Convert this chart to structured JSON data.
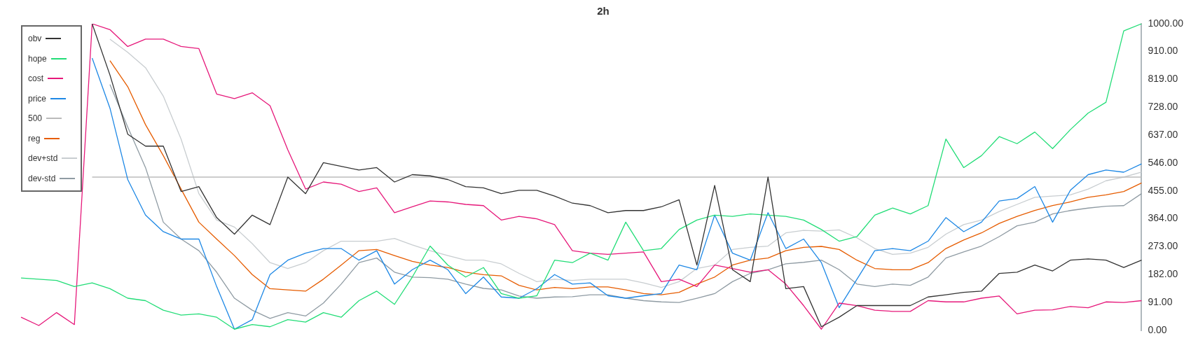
{
  "chart_data": {
    "type": "line",
    "title": "2h",
    "categories": [
      null,
      null,
      null,
      null,
      null,
      null,
      null,
      null,
      null,
      null,
      null,
      null,
      null,
      null,
      null,
      null,
      null,
      null,
      null,
      null,
      null,
      null,
      null,
      null,
      null,
      null,
      null,
      null,
      null,
      null,
      null,
      null,
      null,
      null,
      null,
      null,
      null,
      null,
      null,
      null,
      null,
      null,
      null,
      null,
      null,
      null,
      null,
      null,
      null,
      null,
      null,
      null,
      null,
      null,
      null,
      null,
      null,
      null,
      null,
      null,
      null,
      null,
      null,
      null
    ],
    "series": [
      {
        "name": "obv",
        "color": "#333333",
        "values": [
          null,
          null,
          null,
          null,
          1000,
          833,
          640,
          601,
          601,
          453,
          469,
          368,
          314,
          376,
          345,
          500,
          446,
          547,
          535,
          523,
          531,
          484,
          508,
          504,
          492,
          469,
          465,
          446,
          457,
          457,
          438,
          415,
          407,
          384,
          391,
          391,
          403,
          426,
          213,
          473,
          198,
          159,
          500,
          136,
          143,
          12,
          43,
          81,
          81,
          81,
          81,
          109,
          116,
          124,
          128,
          186,
          190,
          213,
          194,
          229,
          233,
          229,
          205,
          229
        ]
      },
      {
        "name": "hope",
        "color": "#22dd77",
        "values": [
          171,
          167,
          163,
          143,
          155,
          136,
          105,
          97,
          66,
          50,
          54,
          43,
          4,
          19,
          12,
          35,
          27,
          58,
          43,
          97,
          128,
          85,
          174,
          275,
          213,
          174,
          205,
          120,
          105,
          113,
          229,
          221,
          252,
          229,
          353,
          260,
          267,
          329,
          360,
          376,
          372,
          380,
          376,
          372,
          360,
          329,
          291,
          306,
          376,
          399,
          380,
          407,
          624,
          531,
          570,
          632,
          609,
          647,
          593,
          655,
          709,
          744,
          977,
          1000
        ]
      },
      {
        "name": "cost",
        "color": "#e6187a",
        "values": [
          43,
          16,
          58,
          19,
          1000,
          981,
          926,
          950,
          950,
          926,
          919,
          771,
          756,
          775,
          733,
          589,
          461,
          484,
          477,
          453,
          465,
          384,
          403,
          422,
          419,
          411,
          407,
          360,
          372,
          364,
          345,
          260,
          252,
          248,
          252,
          256,
          159,
          167,
          143,
          213,
          202,
          190,
          198,
          151,
          81,
          4,
          89,
          81,
          66,
          62,
          62,
          97,
          93,
          93,
          105,
          112,
          54,
          66,
          67,
          78,
          74,
          93,
          91,
          97
        ]
      },
      {
        "name": "price",
        "color": "#1e88e5",
        "values": [
          null,
          null,
          null,
          null,
          888,
          725,
          492,
          376,
          322,
          298,
          298,
          143,
          4,
          35,
          182,
          229,
          252,
          267,
          267,
          229,
          260,
          151,
          198,
          229,
          198,
          120,
          174,
          109,
          105,
          136,
          182,
          151,
          155,
          113,
          105,
          113,
          120,
          213,
          198,
          376,
          252,
          229,
          384,
          267,
          298,
          221,
          74,
          167,
          260,
          267,
          260,
          291,
          368,
          322,
          353,
          422,
          430,
          469,
          353,
          457,
          508,
          523,
          516,
          543
        ]
      },
      {
        "name": "500",
        "color": "#bbbbbb",
        "values": [
          null,
          null,
          null,
          null,
          500,
          500,
          500,
          500,
          500,
          500,
          500,
          500,
          500,
          500,
          500,
          500,
          500,
          500,
          500,
          500,
          500,
          500,
          500,
          500,
          500,
          500,
          500,
          500,
          500,
          500,
          500,
          500,
          500,
          500,
          500,
          500,
          500,
          500,
          500,
          500,
          500,
          500,
          500,
          500,
          500,
          500,
          500,
          500,
          500,
          500,
          500,
          500,
          500,
          500,
          500,
          500,
          500,
          500,
          500,
          500,
          500,
          500,
          500,
          500
        ]
      },
      {
        "name": "reg",
        "color": "#e65c00",
        "values": [
          null,
          null,
          null,
          null,
          null,
          880,
          795,
          671,
          570,
          461,
          353,
          298,
          244,
          182,
          136,
          132,
          128,
          167,
          213,
          260,
          264,
          244,
          225,
          213,
          205,
          190,
          182,
          178,
          147,
          132,
          140,
          136,
          142,
          142,
          132,
          120,
          116,
          124,
          151,
          174,
          213,
          229,
          236,
          260,
          271,
          274,
          264,
          229,
          202,
          198,
          198,
          221,
          267,
          295,
          318,
          349,
          372,
          391,
          407,
          419,
          434,
          442,
          453,
          481
        ]
      },
      {
        "name": "dev+std",
        "color": "#c8cdd0",
        "values": [
          null,
          null,
          null,
          null,
          null,
          950,
          907,
          857,
          764,
          624,
          446,
          360,
          337,
          283,
          221,
          202,
          221,
          260,
          291,
          291,
          291,
          300,
          279,
          260,
          244,
          229,
          229,
          217,
          186,
          159,
          167,
          163,
          167,
          167,
          167,
          155,
          140,
          159,
          202,
          213,
          264,
          271,
          275,
          318,
          326,
          324,
          328,
          302,
          267,
          248,
          252,
          271,
          314,
          345,
          360,
          388,
          411,
          434,
          438,
          442,
          461,
          488,
          500,
          516
        ]
      },
      {
        "name": "dev-std",
        "color": "#8f9ba3",
        "values": [
          null,
          null,
          null,
          null,
          null,
          802,
          663,
          531,
          353,
          298,
          260,
          190,
          105,
          66,
          39,
          58,
          47,
          89,
          151,
          221,
          236,
          190,
          174,
          172,
          167,
          151,
          137,
          132,
          112,
          105,
          109,
          110,
          116,
          116,
          105,
          97,
          93,
          91,
          105,
          120,
          159,
          186,
          198,
          217,
          222,
          229,
          198,
          151,
          143,
          151,
          147,
          174,
          236,
          256,
          275,
          306,
          341,
          353,
          380,
          391,
          399,
          405,
          407,
          446
        ]
      }
    ],
    "ylim": [
      0,
      1000
    ],
    "yticks": [
      {
        "value": 0,
        "label": "0.00"
      },
      {
        "value": 91,
        "label": "91.00"
      },
      {
        "value": 182,
        "label": "182.00"
      },
      {
        "value": 273,
        "label": "273.00"
      },
      {
        "value": 364,
        "label": "364.00"
      },
      {
        "value": 455,
        "label": "455.00"
      },
      {
        "value": 546,
        "label": "546.00"
      },
      {
        "value": 637,
        "label": "637.00"
      },
      {
        "value": 728,
        "label": "728.00"
      },
      {
        "value": 819,
        "label": "819.00"
      },
      {
        "value": 910,
        "label": "910.00"
      },
      {
        "value": 1000,
        "label": "1000.00"
      }
    ],
    "tick_labels": "y",
    "grid": false,
    "legend": "top left",
    "marker": "none",
    "line_style": "solid"
  }
}
